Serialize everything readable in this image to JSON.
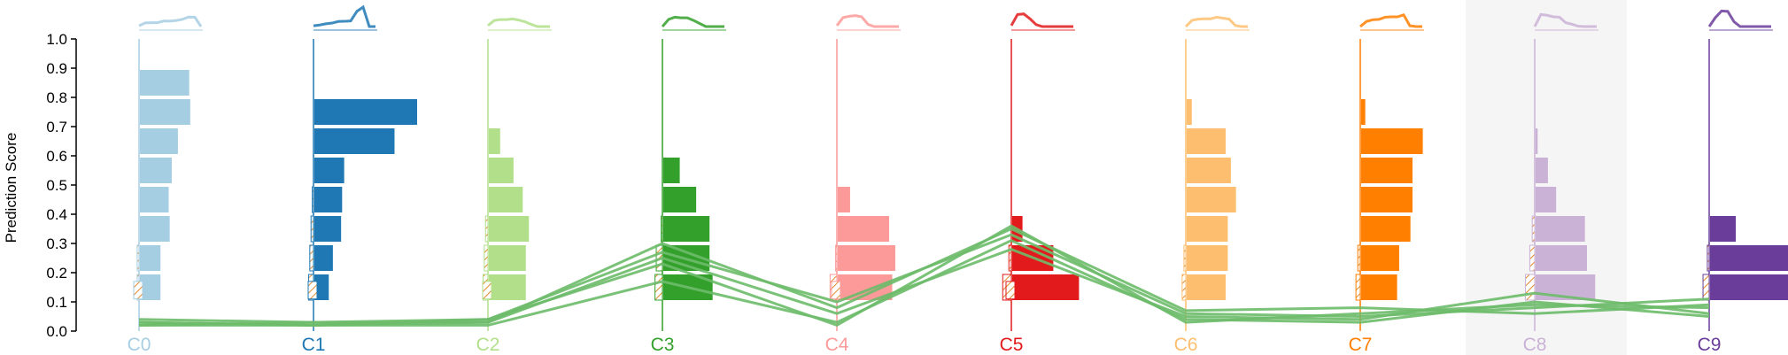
{
  "chart_data": {
    "type": "bar",
    "ylabel": "Prediction Score",
    "ylim": [
      0,
      1
    ],
    "yticks": [
      "0.0",
      "0.1",
      "0.2",
      "0.3",
      "0.4",
      "0.5",
      "0.6",
      "0.7",
      "0.8",
      "0.9",
      "1.0"
    ],
    "highlighted_class": "C8",
    "selected_line_color": "#6dbb6a",
    "bin_edges": [
      0.1,
      0.2,
      0.3,
      0.4,
      0.5,
      0.6,
      0.7,
      0.8,
      0.9,
      1.0
    ],
    "classes": [
      {
        "label": "C0",
        "color": "#a6cee3",
        "counts": [
          0.04,
          0.19,
          0.2,
          0.2,
          0.29,
          0.28,
          0.31,
          0.37,
          0.49,
          0.48,
          0
        ],
        "misclassified": [
          0.04,
          0.1,
          0.03,
          0.03,
          0,
          0,
          0,
          0,
          0,
          0,
          0
        ]
      },
      {
        "label": "C1",
        "color": "#1f78b4",
        "counts": [
          0.04,
          0.08,
          0.14,
          0.18,
          0.26,
          0.27,
          0.29,
          0.78,
          1.0,
          0,
          0
        ],
        "misclassified": [
          0.04,
          0.1,
          0.08,
          0.06,
          0.04,
          0.02,
          0,
          0,
          0,
          0,
          0
        ]
      },
      {
        "label": "C2",
        "color": "#b2df8a",
        "counts": [
          0.05,
          0.31,
          0.36,
          0.36,
          0.39,
          0.33,
          0.24,
          0.11,
          0,
          0,
          0
        ],
        "misclassified": [
          0.05,
          0.2,
          0.08,
          0.06,
          0.04,
          0,
          0,
          0,
          0,
          0,
          0
        ]
      },
      {
        "label": "C3",
        "color": "#33a02c",
        "counts": [
          0,
          0.37,
          0.48,
          0.45,
          0.45,
          0.32,
          0.16,
          0,
          0,
          0,
          0
        ],
        "misclassified": [
          0,
          0.15,
          0.12,
          0.1,
          0.02,
          0,
          0,
          0,
          0,
          0,
          0
        ]
      },
      {
        "label": "C4",
        "color": "#fb9a99",
        "counts": [
          0.05,
          0.46,
          0.53,
          0.56,
          0.5,
          0.12,
          0,
          0,
          0,
          0,
          0
        ],
        "misclassified": [
          0.05,
          0.25,
          0.11,
          0.02,
          0,
          0,
          0,
          0,
          0,
          0,
          0
        ]
      },
      {
        "label": "C5",
        "color": "#e31a1c",
        "counts": [
          0.05,
          0.62,
          0.65,
          0.4,
          0.1,
          0,
          0,
          0,
          0,
          0,
          0
        ],
        "misclassified": [
          0.05,
          0.2,
          0.14,
          0.04,
          0,
          0,
          0,
          0,
          0,
          0,
          0
        ]
      },
      {
        "label": "C6",
        "color": "#fdbf6f",
        "counts": [
          0,
          0.32,
          0.38,
          0.4,
          0.4,
          0.48,
          0.43,
          0.38,
          0.05,
          0,
          0
        ],
        "misclassified": [
          0,
          0.14,
          0.06,
          0.03,
          0,
          0,
          0,
          0,
          0,
          0,
          0
        ]
      },
      {
        "label": "C7",
        "color": "#ff7f00",
        "counts": [
          0,
          0.26,
          0.35,
          0.37,
          0.48,
          0.5,
          0.5,
          0.6,
          0.04,
          0,
          0
        ],
        "misclassified": [
          0,
          0.16,
          0.07,
          0.04,
          0,
          0,
          0,
          0,
          0,
          0,
          0
        ]
      },
      {
        "label": "C8",
        "color": "#cab2d6",
        "counts": [
          0,
          0.62,
          0.58,
          0.5,
          0.48,
          0.2,
          0.12,
          0.02,
          0,
          0,
          0
        ],
        "misclassified": [
          0,
          0.28,
          0.15,
          0.08,
          0.04,
          0,
          0,
          0,
          0,
          0,
          0
        ]
      },
      {
        "label": "C9",
        "color": "#6a3d9a",
        "counts": [
          0,
          0.46,
          0.8,
          0.78,
          0.25,
          0,
          0,
          0,
          0,
          0,
          0
        ],
        "misclassified": [
          0,
          0.25,
          0.1,
          0.03,
          0,
          0,
          0,
          0,
          0,
          0,
          0
        ]
      }
    ],
    "selected_lines": [
      [
        0.03,
        0.02,
        0.03,
        0.3,
        0.08,
        0.35,
        0.07,
        0.08,
        0.06,
        0.09
      ],
      [
        0.04,
        0.03,
        0.04,
        0.27,
        0.1,
        0.33,
        0.06,
        0.05,
        0.08,
        0.11
      ],
      [
        0.02,
        0.02,
        0.02,
        0.17,
        0.03,
        0.31,
        0.04,
        0.03,
        0.1,
        0.05
      ],
      [
        0.02,
        0.03,
        0.03,
        0.25,
        0.06,
        0.28,
        0.05,
        0.04,
        0.13,
        0.06
      ],
      [
        0.03,
        0.02,
        0.04,
        0.23,
        0.02,
        0.36,
        0.03,
        0.06,
        0.09,
        0.08
      ]
    ]
  }
}
